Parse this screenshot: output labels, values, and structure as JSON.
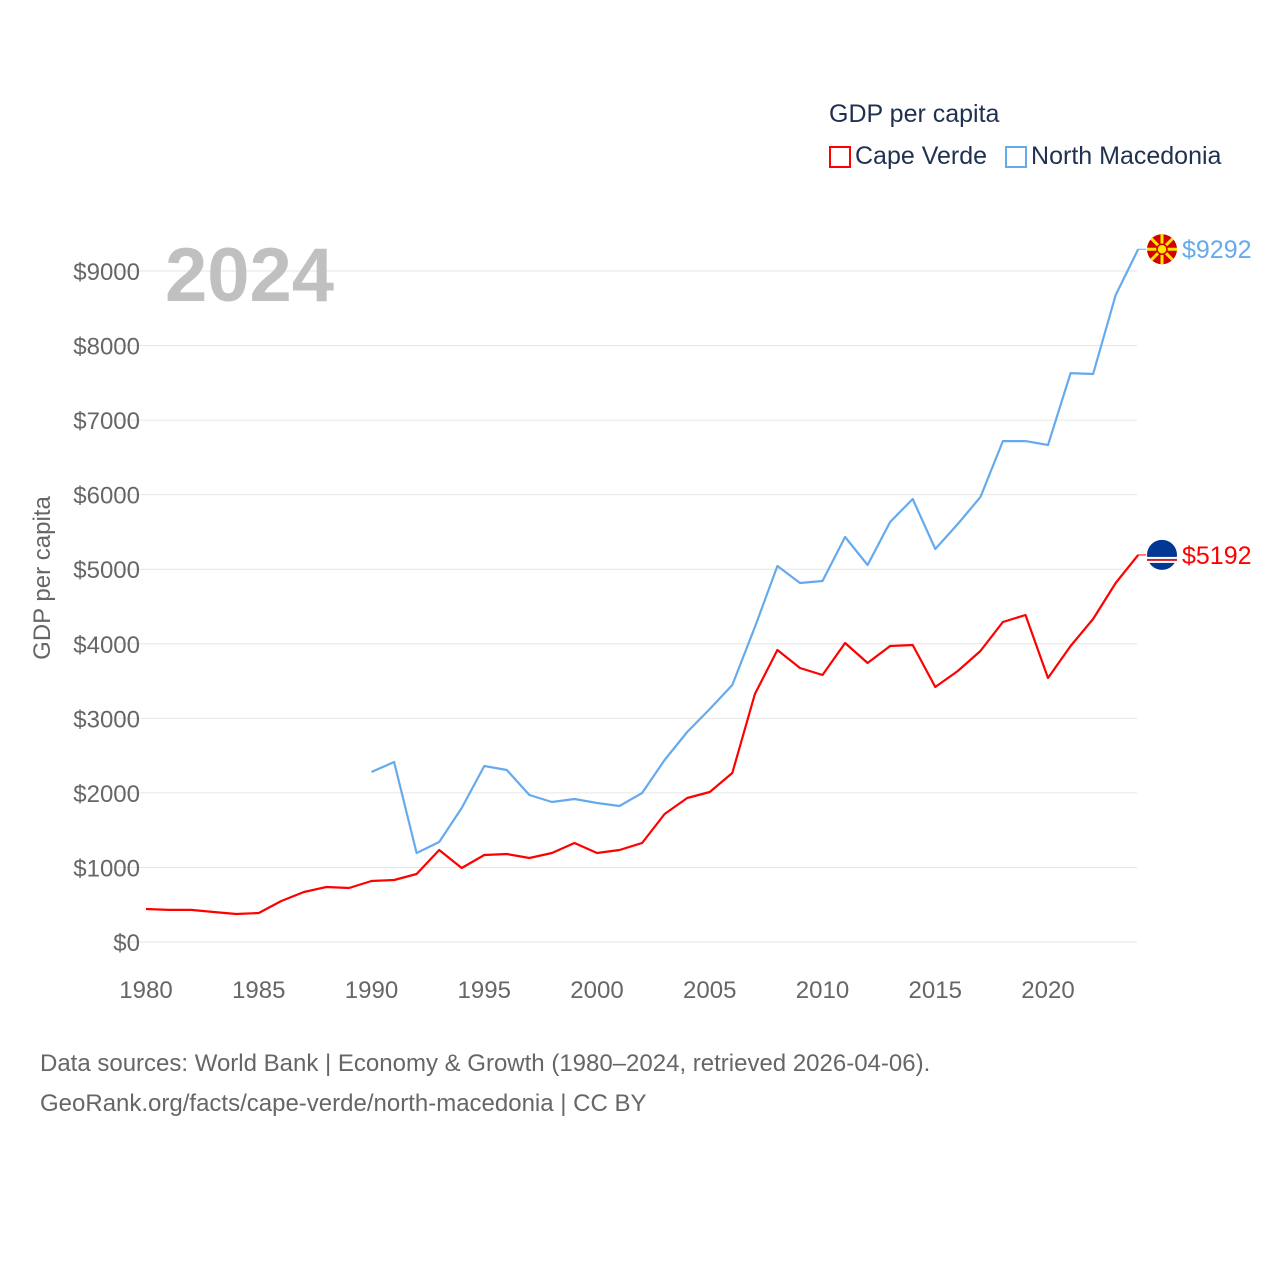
{
  "chart_data": {
    "type": "line",
    "title": "GDP per capita",
    "year_label": "2024",
    "ylabel": "GDP per capita",
    "xlabel": "",
    "ylim": [
      0,
      9500
    ],
    "xlim": [
      1980,
      2024
    ],
    "grid": true,
    "legend_position": "top-right",
    "y_ticks": [
      0,
      1000,
      2000,
      3000,
      4000,
      5000,
      6000,
      7000,
      8000,
      9000
    ],
    "y_tick_labels": [
      "$0",
      "$1000",
      "$2000",
      "$3000",
      "$4000",
      "$5000",
      "$6000",
      "$7000",
      "$8000",
      "$9000"
    ],
    "x_ticks": [
      1980,
      1985,
      1990,
      1995,
      2000,
      2005,
      2010,
      2015,
      2020
    ],
    "x_tick_labels": [
      "1980",
      "1985",
      "1990",
      "1995",
      "2000",
      "2005",
      "2010",
      "2015",
      "2020"
    ],
    "series": [
      {
        "name": "Cape Verde",
        "color": "#ff0000",
        "end_label": "$5192",
        "x": [
          1980,
          1981,
          1982,
          1983,
          1984,
          1985,
          1986,
          1987,
          1988,
          1989,
          1990,
          1991,
          1992,
          1993,
          1994,
          1995,
          1996,
          1997,
          1998,
          1999,
          2000,
          2001,
          2002,
          2003,
          2004,
          2005,
          2006,
          2007,
          2008,
          2009,
          2010,
          2011,
          2012,
          2013,
          2014,
          2015,
          2016,
          2017,
          2018,
          2019,
          2020,
          2021,
          2022,
          2023,
          2024
        ],
        "values": [
          443,
          430,
          430,
          402,
          375,
          389,
          550,
          670,
          738,
          724,
          818,
          832,
          912,
          1234,
          992,
          1167,
          1180,
          1127,
          1194,
          1328,
          1194,
          1234,
          1328,
          1717,
          1931,
          2012,
          2267,
          3326,
          3916,
          3675,
          3581,
          4010,
          3742,
          3970,
          3983,
          3420,
          3635,
          3903,
          4292,
          4386,
          3541,
          3970,
          4332,
          4815,
          5192
        ]
      },
      {
        "name": "North Macedonia",
        "color": "#66aaee",
        "end_label": "$9292",
        "x": [
          1990,
          1991,
          1992,
          1993,
          1994,
          1995,
          1996,
          1997,
          1998,
          1999,
          2000,
          2001,
          2002,
          2003,
          2004,
          2005,
          2006,
          2007,
          2008,
          2009,
          2010,
          2011,
          2012,
          2013,
          2014,
          2015,
          2016,
          2017,
          2018,
          2019,
          2020,
          2021,
          2022,
          2023,
          2024
        ],
        "values": [
          2280,
          2414,
          1194,
          1341,
          1797,
          2360,
          2307,
          1972,
          1878,
          1918,
          1864,
          1824,
          1998,
          2441,
          2817,
          3125,
          3447,
          4225,
          5043,
          4815,
          4842,
          5432,
          5056,
          5633,
          5942,
          5271,
          5606,
          5968,
          6719,
          6719,
          6666,
          7631,
          7618,
          8678,
          9292
        ]
      }
    ]
  },
  "footer": {
    "line1": "Data sources: World Bank | Economy & Growth (1980–2024, retrieved 2026-04-06).",
    "line2": "GeoRank.org/facts/cape-verde/north-macedonia | CC BY"
  }
}
